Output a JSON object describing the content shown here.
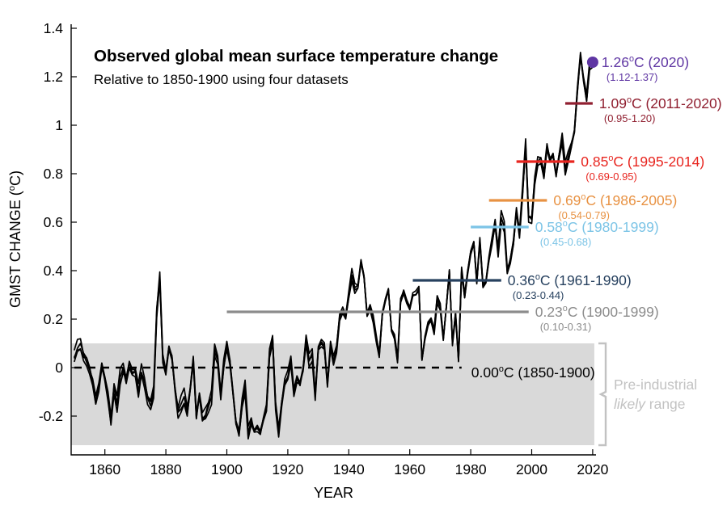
{
  "chart_data": {
    "type": "line",
    "title": "Observed global mean surface temperature change",
    "subtitle": "Relative to 1850-1900 using four datasets",
    "xlabel": "YEAR",
    "ylabel": "GMST CHANGE (°C)",
    "num_datasets": 4,
    "datasets_note": "four observational datasets drawn as overlapping thin black annual lines",
    "xlim": [
      1849,
      2021.5
    ],
    "ylim": [
      -0.357,
      1.41
    ],
    "x_ticks": [
      1860,
      1880,
      1900,
      1920,
      1940,
      1960,
      1980,
      2000,
      2020
    ],
    "y_ticks": [
      -0.2,
      0,
      0.2,
      0.4,
      0.6,
      0.8,
      1,
      1.2,
      1.4
    ],
    "y_tick_labels": [
      "-0.2",
      "0",
      "0.2",
      "0.4",
      "0.6",
      "0.8",
      "1",
      "1.2",
      "1.4"
    ],
    "grid": false,
    "year_start": 1850,
    "year_end": 2020,
    "values": [
      0.04,
      0.08,
      0.1,
      0.06,
      0.04,
      0.0,
      -0.06,
      -0.15,
      -0.1,
      0.0,
      -0.05,
      -0.12,
      -0.22,
      -0.08,
      -0.15,
      -0.04,
      0.0,
      -0.04,
      0.02,
      -0.02,
      -0.02,
      -0.1,
      -0.02,
      -0.06,
      -0.12,
      -0.14,
      -0.1,
      0.22,
      0.36,
      0.02,
      -0.03,
      0.08,
      0.05,
      -0.08,
      -0.18,
      -0.15,
      -0.12,
      -0.18,
      -0.08,
      0.04,
      -0.2,
      -0.12,
      -0.22,
      -0.2,
      -0.16,
      -0.12,
      0.08,
      0.04,
      -0.12,
      0.0,
      0.08,
      0.02,
      -0.1,
      -0.22,
      -0.26,
      -0.14,
      -0.08,
      -0.27,
      -0.22,
      -0.26,
      -0.25,
      -0.27,
      -0.22,
      -0.18,
      0.05,
      0.12,
      -0.15,
      -0.26,
      -0.14,
      -0.06,
      -0.04,
      0.02,
      -0.1,
      -0.04,
      -0.06,
      0.0,
      0.12,
      0.03,
      0.05,
      -0.12,
      0.08,
      0.1,
      0.08,
      -0.08,
      0.08,
      0.02,
      0.08,
      0.22,
      0.25,
      0.22,
      0.3,
      0.38,
      0.32,
      0.33,
      0.44,
      0.38,
      0.22,
      0.25,
      0.2,
      0.12,
      0.05,
      0.22,
      0.28,
      0.32,
      0.15,
      0.12,
      0.03,
      0.28,
      0.32,
      0.28,
      0.25,
      0.3,
      0.3,
      0.32,
      0.03,
      0.12,
      0.18,
      0.2,
      0.15,
      0.28,
      0.25,
      0.12,
      0.25,
      0.4,
      0.1,
      0.22,
      0.03,
      0.4,
      0.3,
      0.4,
      0.48,
      0.52,
      0.35,
      0.52,
      0.33,
      0.35,
      0.45,
      0.52,
      0.6,
      0.48,
      0.62,
      0.58,
      0.4,
      0.45,
      0.52,
      0.65,
      0.55,
      0.72,
      0.92,
      0.62,
      0.62,
      0.78,
      0.85,
      0.85,
      0.78,
      0.9,
      0.85,
      0.88,
      0.8,
      0.88,
      0.95,
      0.82,
      0.87,
      0.92,
      0.98,
      1.15,
      1.29,
      1.18,
      1.1,
      1.24,
      1.26
    ],
    "shaded_band": {
      "from": -0.32,
      "to": 0.1,
      "color": "#d9d9d9",
      "bracket_color": "#c2c2c2",
      "label_line1": "Pre-industrial",
      "label_line2_em": "likely",
      "label_line2_rest": " range"
    },
    "annotations": [
      {
        "type": "dot",
        "year": 2020,
        "value": 1.26,
        "temp": "1.26",
        "period": "(2020)",
        "range": "(1.12-1.37)",
        "color": "#5f36a3",
        "label_dx": 11
      },
      {
        "type": "line",
        "start": 2011,
        "end": 2020,
        "value": 1.09,
        "temp": "1.09",
        "period": "(2011-2020)",
        "range": "(0.95-1.20)",
        "color": "#901f30"
      },
      {
        "type": "line",
        "start": 1995,
        "end": 2014,
        "value": 0.85,
        "temp": "0.85",
        "period": "(1995-2014)",
        "range": "(0.69-0.95)",
        "color": "#e8251f"
      },
      {
        "type": "line",
        "start": 1986,
        "end": 2005,
        "value": 0.69,
        "temp": "0.69",
        "period": "(1986-2005)",
        "range": "(0.54-0.79)",
        "color": "#e89243"
      },
      {
        "type": "line",
        "start": 1980,
        "end": 1999,
        "value": 0.58,
        "temp": "0.58",
        "period": "(1980-1999)",
        "range": "(0.45-0.68)",
        "color": "#7cc4e6"
      },
      {
        "type": "line",
        "start": 1961,
        "end": 1990,
        "value": 0.36,
        "temp": "0.36",
        "period": "(1961-1990)",
        "range": "(0.23-0.44)",
        "color": "#27415f"
      },
      {
        "type": "line",
        "start": 1900,
        "end": 1999,
        "value": 0.23,
        "temp": "0.23",
        "period": "(1900-1999)",
        "range": "(0.10-0.31)",
        "color": "#8c8c8c"
      },
      {
        "type": "dashed",
        "start": 1850,
        "end": 1977,
        "value": 0.0,
        "temp": "0.00",
        "period": "(1850-1900)",
        "range": null,
        "color": "#000000",
        "label_dx": 12,
        "label_dy": 6
      }
    ]
  }
}
